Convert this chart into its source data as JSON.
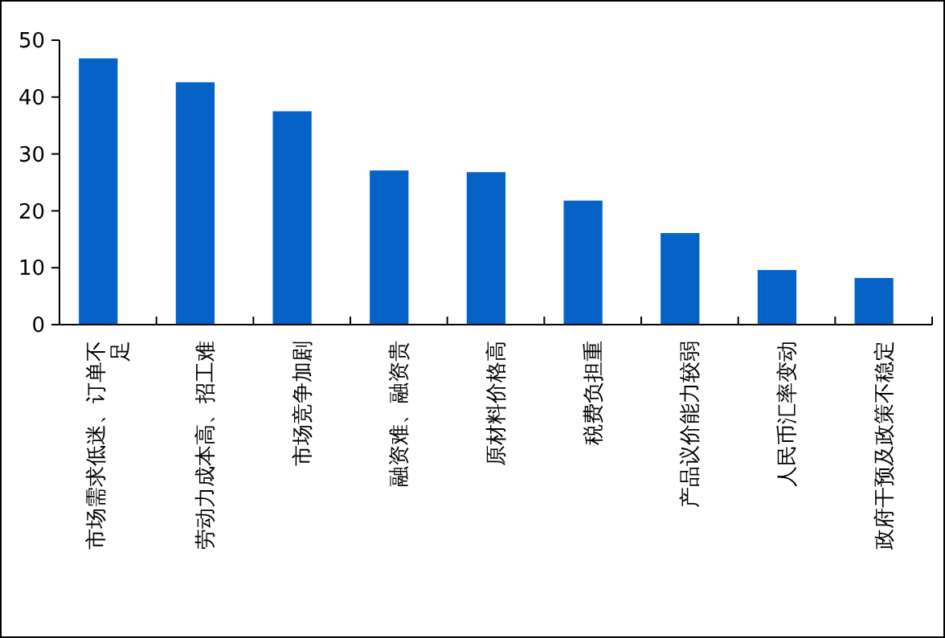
{
  "chart_data": {
    "type": "bar",
    "categories": [
      "市场需求低迷、订单不足",
      "劳动力成本高、招工难",
      "市场竞争加剧",
      "融资难、融资贵",
      "原材料价格高",
      "税费负担重",
      "产品议价能力较弱",
      "人民币汇率变动",
      "政府干预及政策不稳定"
    ],
    "values": [
      46.8,
      42.6,
      37.5,
      27.1,
      26.8,
      21.8,
      16.1,
      9.6,
      8.2
    ],
    "color": "#0563c8",
    "ylim": [
      0,
      50
    ],
    "yticks": [
      0,
      10,
      20,
      30,
      40,
      50
    ],
    "grid": false
  }
}
